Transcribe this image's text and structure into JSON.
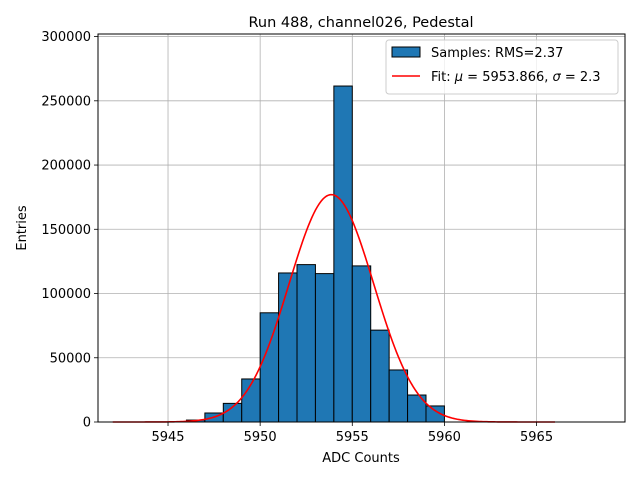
{
  "chart_data": {
    "type": "bar",
    "title": "Run 488, channel026, Pedestal",
    "xlabel": "ADC Counts",
    "ylabel": "Entries",
    "xlim": [
      5941.2,
      5969.8
    ],
    "ylim": [
      0,
      302000
    ],
    "grid": true,
    "legend_position": "top-right",
    "x_ticks": [
      5945,
      5950,
      5955,
      5960,
      5965
    ],
    "y_ticks": [
      0,
      50000,
      100000,
      150000,
      200000,
      250000,
      300000
    ],
    "histogram": {
      "name": "Samples: RMS=2.37",
      "color": "#1f77b4",
      "bins": [
        {
          "x0": 5946.0,
          "x1": 5947.0,
          "value": 1500
        },
        {
          "x0": 5947.0,
          "x1": 5948.0,
          "value": 7000
        },
        {
          "x0": 5948.0,
          "x1": 5949.0,
          "value": 14500
        },
        {
          "x0": 5949.0,
          "x1": 5950.0,
          "value": 33500
        },
        {
          "x0": 5950.0,
          "x1": 5951.0,
          "value": 85000
        },
        {
          "x0": 5951.0,
          "x1": 5952.0,
          "value": 116000
        },
        {
          "x0": 5952.0,
          "x1": 5953.0,
          "value": 122500
        },
        {
          "x0": 5953.0,
          "x1": 5954.0,
          "value": 115500
        },
        {
          "x0": 5954.0,
          "x1": 5955.0,
          "value": 261500
        },
        {
          "x0": 5955.0,
          "x1": 5956.0,
          "value": 121500
        },
        {
          "x0": 5956.0,
          "x1": 5957.0,
          "value": 71500
        },
        {
          "x0": 5957.0,
          "x1": 5958.0,
          "value": 40500
        },
        {
          "x0": 5958.0,
          "x1": 5959.0,
          "value": 21000
        },
        {
          "x0": 5959.0,
          "x1": 5960.0,
          "value": 12500
        }
      ]
    },
    "fit": {
      "name": "Fit: μ = 5953.866, σ = 2.3",
      "legend_parts": [
        "Fit: ",
        "μ",
        " = 5953.866, ",
        "σ",
        " = 2.3"
      ],
      "color": "#ff0000",
      "mu": 5953.866,
      "sigma": 2.3,
      "amplitude": 177000,
      "x_range": [
        5942.0,
        5966.0
      ]
    }
  }
}
